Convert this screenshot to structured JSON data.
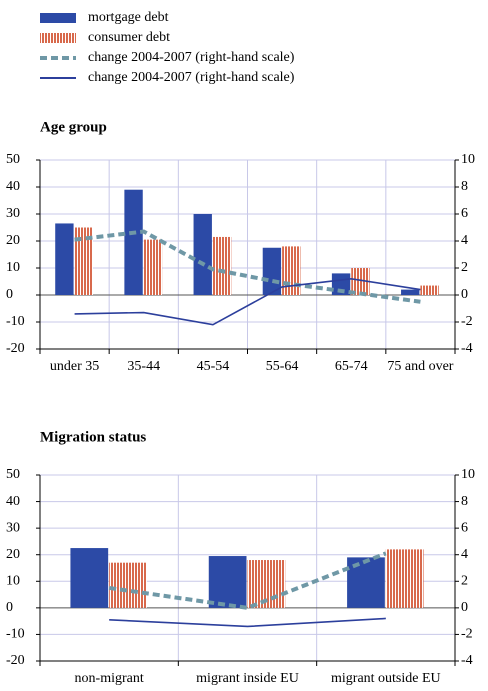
{
  "chart_data": [
    {
      "type": "bar-line",
      "title": "Age group",
      "categories": [
        "under 35",
        "35-44",
        "45-54",
        "55-64",
        "65-74",
        "75 and over"
      ],
      "ylim": [
        -20,
        50
      ],
      "yticks": [
        -20,
        -10,
        0,
        10,
        20,
        30,
        40,
        50
      ],
      "y2lim": [
        -4,
        10
      ],
      "y2ticks": [
        -4,
        -2,
        0,
        2,
        4,
        6,
        8,
        10
      ],
      "grid": true,
      "series": [
        {
          "name": "mortgage debt",
          "kind": "bar",
          "color": "#2c4aa6",
          "values": [
            26.5,
            39,
            30,
            17.5,
            8,
            2
          ]
        },
        {
          "name": "consumer debt",
          "kind": "bar",
          "pattern": "striped",
          "color": "#d8694c",
          "values": [
            25,
            20.5,
            21.5,
            18,
            10,
            3.5
          ]
        },
        {
          "name": "change 2004-2007 (right-hand scale)",
          "kind": "line",
          "dashed": true,
          "axis": "y2",
          "color": "#6f98a6",
          "values": [
            4.1,
            4.7,
            1.9,
            0.9,
            0.2,
            -0.5
          ]
        },
        {
          "name": "change 2004-2007 (right-hand scale)",
          "kind": "line",
          "dashed": false,
          "axis": "y2",
          "color": "#2c3f9c",
          "values": [
            -1.4,
            -1.3,
            -2.2,
            0.6,
            1.2,
            0.4
          ]
        }
      ]
    },
    {
      "type": "bar-line",
      "title": "Migration status",
      "categories": [
        "non-migrant",
        "migrant inside EU",
        "migrant outside EU"
      ],
      "ylim": [
        -20,
        50
      ],
      "yticks": [
        -20,
        -10,
        0,
        10,
        20,
        30,
        40,
        50
      ],
      "y2lim": [
        -4,
        10
      ],
      "y2ticks": [
        -4,
        -2,
        0,
        2,
        4,
        6,
        8,
        10
      ],
      "grid": true,
      "series": [
        {
          "name": "mortgage debt",
          "kind": "bar",
          "color": "#2c4aa6",
          "values": [
            22.5,
            19.5,
            19
          ]
        },
        {
          "name": "consumer debt",
          "kind": "bar",
          "pattern": "striped",
          "color": "#d8694c",
          "values": [
            17,
            18,
            22
          ]
        },
        {
          "name": "change 2004-2007 (right-hand scale)",
          "kind": "line",
          "dashed": true,
          "axis": "y2",
          "color": "#6f98a6",
          "values": [
            1.5,
            0,
            4.1
          ]
        },
        {
          "name": "change 2004-2007 (right-hand scale)",
          "kind": "line",
          "dashed": false,
          "axis": "y2",
          "color": "#2c3f9c",
          "values": [
            -0.9,
            -1.4,
            -0.8
          ]
        }
      ]
    }
  ]
}
